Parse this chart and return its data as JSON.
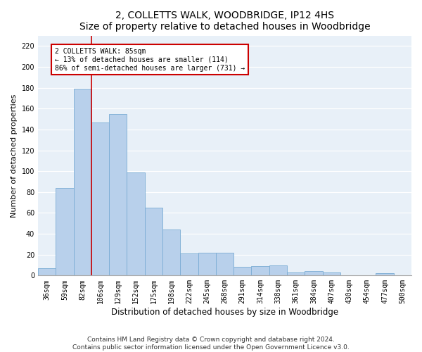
{
  "title": "2, COLLETTS WALK, WOODBRIDGE, IP12 4HS",
  "subtitle": "Size of property relative to detached houses in Woodbridge",
  "xlabel": "Distribution of detached houses by size in Woodbridge",
  "ylabel": "Number of detached properties",
  "categories": [
    "36sqm",
    "59sqm",
    "82sqm",
    "106sqm",
    "129sqm",
    "152sqm",
    "175sqm",
    "198sqm",
    "222sqm",
    "245sqm",
    "268sqm",
    "291sqm",
    "314sqm",
    "338sqm",
    "361sqm",
    "384sqm",
    "407sqm",
    "430sqm",
    "454sqm",
    "477sqm",
    "500sqm"
  ],
  "values": [
    7,
    84,
    179,
    147,
    155,
    99,
    65,
    44,
    21,
    22,
    22,
    8,
    9,
    10,
    3,
    4,
    3,
    0,
    0,
    2,
    0
  ],
  "bar_color": "#b8d0eb",
  "bar_edge_color": "#7aacd4",
  "annotation_text_line1": "2 COLLETTS WALK: 85sqm",
  "annotation_text_line2": "← 13% of detached houses are smaller (114)",
  "annotation_text_line3": "86% of semi-detached houses are larger (731) →",
  "ylim": [
    0,
    230
  ],
  "yticks": [
    0,
    20,
    40,
    60,
    80,
    100,
    120,
    140,
    160,
    180,
    200,
    220
  ],
  "vline_color": "#cc0000",
  "vline_x_index": 2.5,
  "footnote1": "Contains HM Land Registry data © Crown copyright and database right 2024.",
  "footnote2": "Contains public sector information licensed under the Open Government Licence v3.0.",
  "bg_color": "#e8f0f8",
  "title_fontsize": 10,
  "subtitle_fontsize": 9,
  "xlabel_fontsize": 8.5,
  "ylabel_fontsize": 8,
  "tick_fontsize": 7,
  "footnote_fontsize": 6.5
}
